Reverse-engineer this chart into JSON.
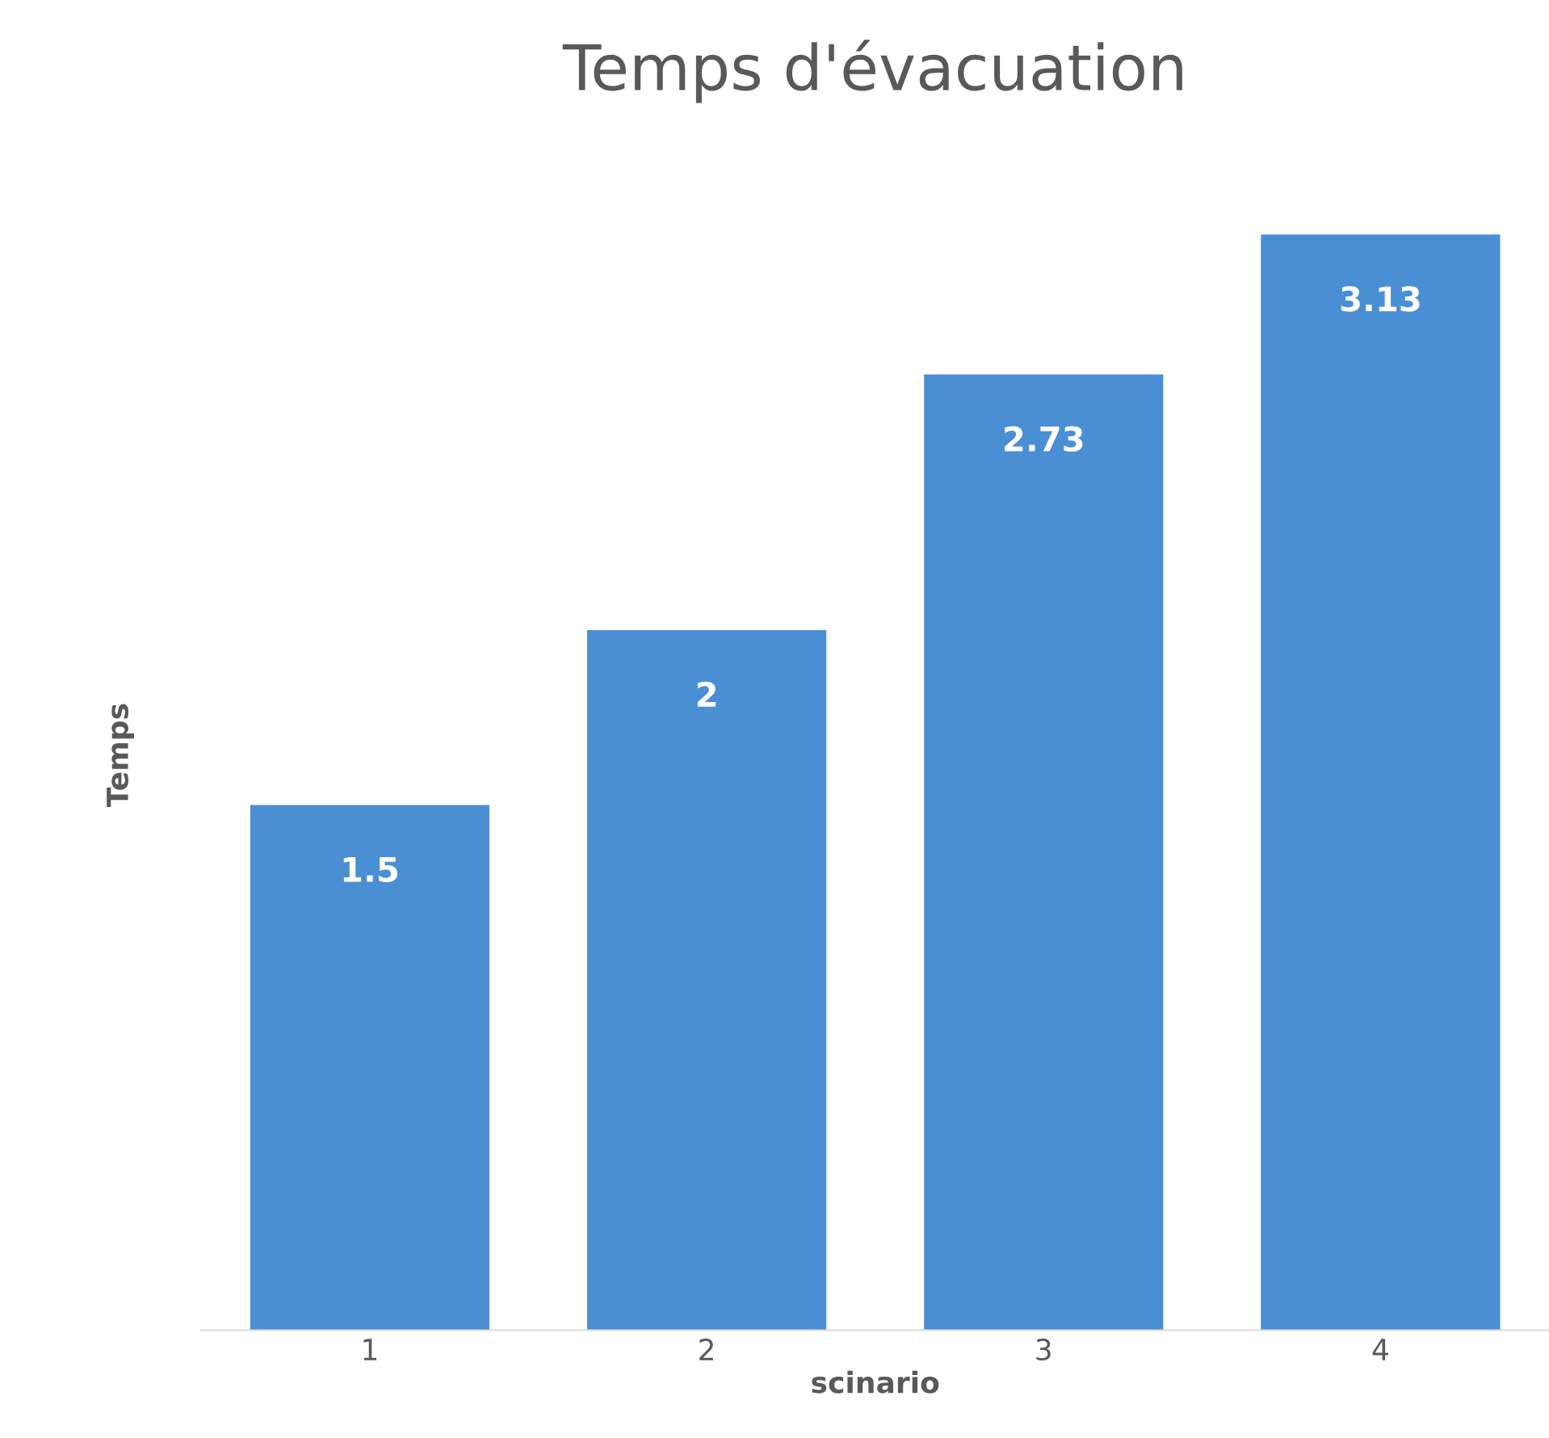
{
  "chart_data": {
    "type": "bar",
    "title": "Temps d'évacuation",
    "xlabel": "scinario",
    "ylabel": "Temps",
    "categories": [
      "1",
      "2",
      "3",
      "4"
    ],
    "values": [
      1.5,
      2,
      2.73,
      3.13
    ],
    "color": "#4a8fd4",
    "data_labels": true,
    "tick_labels": "x",
    "grid": false,
    "legend": false
  }
}
